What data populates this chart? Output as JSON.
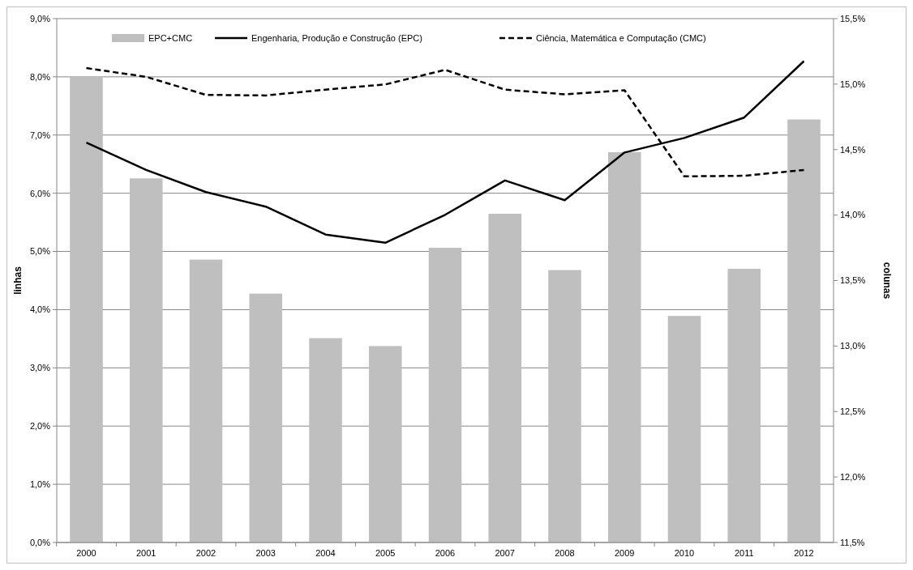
{
  "chart_data": {
    "type": "bar",
    "categories": [
      "2000",
      "2001",
      "2002",
      "2003",
      "2004",
      "2005",
      "2006",
      "2007",
      "2008",
      "2009",
      "2010",
      "2011",
      "2012"
    ],
    "ylabel": "linhas",
    "y2label": "colunas",
    "series": [
      {
        "name": "EPC+CMC",
        "axis": "y2",
        "color": "#bfbfbf",
        "values": [
          15.06,
          14.28,
          13.66,
          13.4,
          13.06,
          13.0,
          13.75,
          14.01,
          13.58,
          14.48,
          13.23,
          13.59,
          14.73
        ]
      },
      {
        "name": "Engenharia, Produção e Construção (EPC)",
        "type": "line",
        "color": "#000000",
        "line_style": "solid",
        "values": [
          6.87,
          6.4,
          6.02,
          5.77,
          5.29,
          5.15,
          5.63,
          6.22,
          5.88,
          6.7,
          6.95,
          7.3,
          8.27
        ]
      },
      {
        "name": "Ciência, Matemática e Computação (CMC)",
        "type": "line",
        "color": "#000000",
        "line_style": "dashed",
        "values": [
          8.15,
          8.0,
          7.69,
          7.68,
          7.78,
          7.87,
          8.12,
          7.78,
          7.7,
          7.77,
          6.29,
          6.3,
          6.4
        ]
      }
    ],
    "ylim": [
      0,
      9
    ],
    "yticks": [
      {
        "value": 0,
        "label": "0,0%"
      },
      {
        "value": 1,
        "label": "1,0%"
      },
      {
        "value": 2,
        "label": "2,0%"
      },
      {
        "value": 3,
        "label": "3,0%"
      },
      {
        "value": 4,
        "label": "4,0%"
      },
      {
        "value": 5,
        "label": "5,0%"
      },
      {
        "value": 6,
        "label": "6,0%"
      },
      {
        "value": 7,
        "label": "7,0%"
      },
      {
        "value": 8,
        "label": "8,0%"
      },
      {
        "value": 9,
        "label": "9,0%"
      }
    ],
    "y2lim": [
      11.5,
      15.5
    ],
    "y2ticks": [
      {
        "value": 11.5,
        "label": "11,5%"
      },
      {
        "value": 12,
        "label": "12,0%"
      },
      {
        "value": 12.5,
        "label": "12,5%"
      },
      {
        "value": 13,
        "label": "13,0%"
      },
      {
        "value": 13.5,
        "label": "13,5%"
      },
      {
        "value": 14,
        "label": "14,0%"
      },
      {
        "value": 14.5,
        "label": "14,5%"
      },
      {
        "value": 15,
        "label": "15,0%"
      },
      {
        "value": 15.5,
        "label": "15,5%"
      }
    ],
    "grid": "y",
    "legend": "top",
    "marker": "none"
  }
}
